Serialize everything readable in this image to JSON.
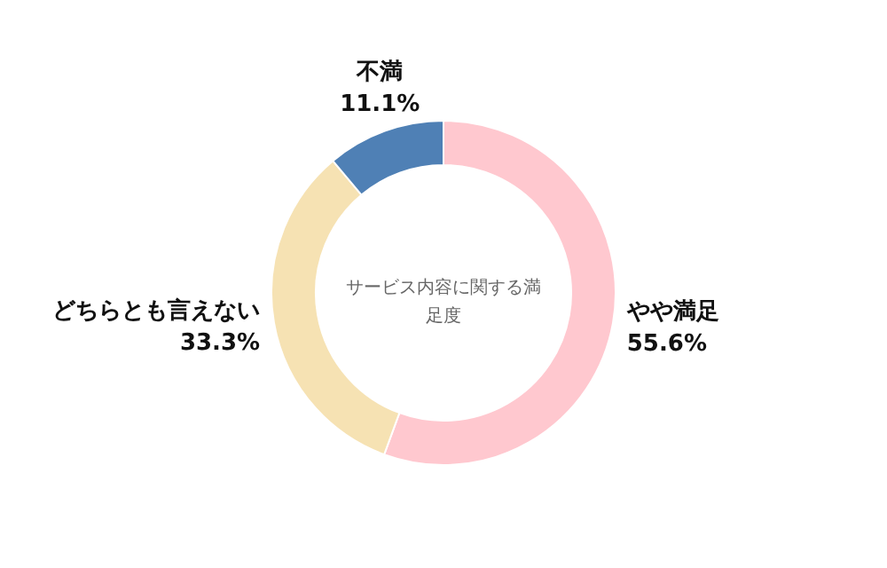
{
  "chart_data": {
    "type": "donut",
    "title": "サービス内容に関する満足度",
    "categories": [
      "やや満足",
      "どちらとも言えない",
      "不満"
    ],
    "values": [
      55.6,
      33.3,
      11.1
    ],
    "value_labels": [
      "55.6%",
      "33.3%",
      "11.1%"
    ],
    "colors": [
      "#ffc8cf",
      "#f6e2b3",
      "#4f80b5"
    ]
  }
}
